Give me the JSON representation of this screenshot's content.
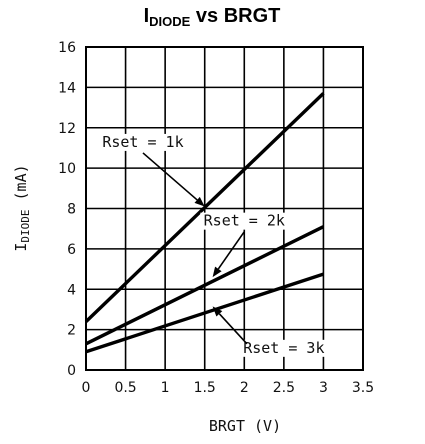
{
  "chart_data": {
    "type": "line",
    "title": {
      "main": "I",
      "subscript": "DIODE",
      "rest": " vs BRGT"
    },
    "xlabel": "BRGT (V)",
    "ylabel": {
      "main": "I",
      "subscript": "DIODE",
      "rest": " (mA)"
    },
    "xlim": [
      0,
      3.5
    ],
    "ylim": [
      0,
      16
    ],
    "xticks": [
      0,
      0.5,
      1,
      1.5,
      2,
      2.5,
      3,
      3.5
    ],
    "xtick_labels": [
      "0",
      "0.5",
      "1",
      "1.5",
      "2",
      "2.5",
      "3",
      "3.5"
    ],
    "yticks": [
      0,
      2,
      4,
      6,
      8,
      10,
      12,
      14,
      16
    ],
    "ytick_labels": [
      "0",
      "2",
      "4",
      "6",
      "8",
      "10",
      "12",
      "14",
      "16"
    ],
    "grid": true,
    "series": [
      {
        "name": "Rset = 1k",
        "x": [
          0,
          3
        ],
        "y": [
          2.4,
          13.7
        ]
      },
      {
        "name": "Rset = 2k",
        "x": [
          0,
          3
        ],
        "y": [
          1.3,
          7.1
        ]
      },
      {
        "name": "Rset = 3k",
        "x": [
          0,
          3
        ],
        "y": [
          0.9,
          4.75
        ]
      }
    ],
    "annotations": [
      {
        "text": "Rset = 1k",
        "series": 0,
        "text_at": [
          0.72,
          11.1
        ],
        "arrow_to": [
          1.5,
          8.1
        ]
      },
      {
        "text": "Rset = 2k",
        "series": 1,
        "text_at": [
          2.0,
          7.2
        ],
        "arrow_to": [
          1.6,
          4.6
        ]
      },
      {
        "text": "Rset = 3k",
        "series": 2,
        "text_at": [
          2.5,
          0.9
        ],
        "arrow_to": [
          1.6,
          3.15
        ]
      }
    ]
  }
}
